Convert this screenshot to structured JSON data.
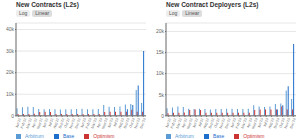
{
  "chart_data": [
    {
      "type": "bar",
      "title": "New Contracts (L2s)",
      "annotations": [
        "Log",
        "Linear"
      ],
      "categories": [
        "Jan'22",
        "Feb'22",
        "Mar'22",
        "Apr'22",
        "May'22",
        "Jun'22",
        "Jul'22",
        "Aug'22",
        "Sep'22",
        "Oct'22",
        "Nov'22",
        "Dec'22",
        "Jan'23",
        "Feb'23",
        "Mar'23",
        "Apr'23",
        "May'23",
        "Jun'23",
        "Jul'23",
        "Aug'23",
        "Sep'23",
        "Oct'23",
        "Nov'23",
        "Dec'23"
      ],
      "series": [
        {
          "name": "Arbitrum",
          "color": "#5b9bd5",
          "values": [
            3500,
            4000,
            4200,
            4100,
            3200,
            3100,
            3200,
            3000,
            2900,
            3000,
            3100,
            3200,
            3300,
            3100,
            3100,
            3200,
            5000,
            4200,
            4100,
            4300,
            5200,
            5500,
            12000,
            6000
          ]
        },
        {
          "name": "Optimism",
          "color": "#cc3333",
          "values": [
            800,
            900,
            900,
            1000,
            1800,
            1900,
            1800,
            900,
            900,
            900,
            900,
            900,
            900,
            900,
            900,
            900,
            1800,
            1900,
            1900,
            1900,
            1900,
            2800,
            1900,
            1900
          ]
        },
        {
          "name": "Base",
          "color": "#1e6ecc",
          "values": [
            0,
            0,
            0,
            0,
            0,
            0,
            0,
            0,
            0,
            0,
            0,
            0,
            0,
            0,
            0,
            0,
            0,
            0,
            0,
            0,
            3000,
            5000,
            14000,
            30000
          ]
        }
      ],
      "ylim": [
        0,
        43000
      ],
      "yticks": [
        0,
        {
          "value": 10000,
          "label": "10k"
        },
        {
          "value": 20000,
          "label": "20k"
        },
        {
          "value": 30000,
          "label": "30k"
        },
        {
          "value": 40000,
          "label": "40k"
        }
      ],
      "grid": true,
      "legend": "bottom left"
    },
    {
      "type": "bar",
      "title": "New Contract Deployers (L2s)",
      "annotations": [
        "Log",
        "Linear"
      ],
      "categories": [
        "Jan'22",
        "Feb'22",
        "Mar'22",
        "Apr'22",
        "May'22",
        "Jun'22",
        "Jul'22",
        "Aug'22",
        "Sep'22",
        "Oct'22",
        "Nov'22",
        "Dec'22",
        "Jan'23",
        "Feb'23",
        "Mar'23",
        "Apr'23",
        "May'23",
        "Jun'23",
        "Jul'23",
        "Aug'23",
        "Sep'23",
        "Oct'23",
        "Nov'23",
        "Dec'23"
      ],
      "series": [
        {
          "name": "Arbitrum",
          "color": "#5b9bd5",
          "values": [
            1800,
            2000,
            2200,
            2100,
            1700,
            1600,
            1700,
            1600,
            1500,
            1600,
            1600,
            1700,
            1700,
            1600,
            1600,
            1700,
            2500,
            2200,
            2100,
            2200,
            2800,
            2900,
            6000,
            4000
          ]
        },
        {
          "name": "Optimism",
          "color": "#cc3333",
          "values": [
            600,
            700,
            700,
            800,
            1400,
            1500,
            1400,
            700,
            700,
            700,
            700,
            700,
            700,
            700,
            700,
            700,
            1400,
            1500,
            1500,
            1500,
            1500,
            2200,
            1500,
            1500
          ]
        },
        {
          "name": "Base",
          "color": "#1e6ecc",
          "values": [
            0,
            0,
            0,
            0,
            0,
            0,
            0,
            0,
            0,
            0,
            0,
            0,
            0,
            0,
            0,
            0,
            0,
            0,
            0,
            0,
            1500,
            2500,
            7000,
            17000
          ]
        }
      ],
      "ylim": [
        0,
        22000
      ],
      "yticks": [
        0,
        {
          "value": 5000,
          "label": "5k"
        },
        {
          "value": 10000,
          "label": "10k"
        },
        {
          "value": 15000,
          "label": "15k"
        },
        {
          "value": 20000,
          "label": "20k"
        }
      ],
      "grid": true,
      "legend": "bottom left"
    }
  ]
}
